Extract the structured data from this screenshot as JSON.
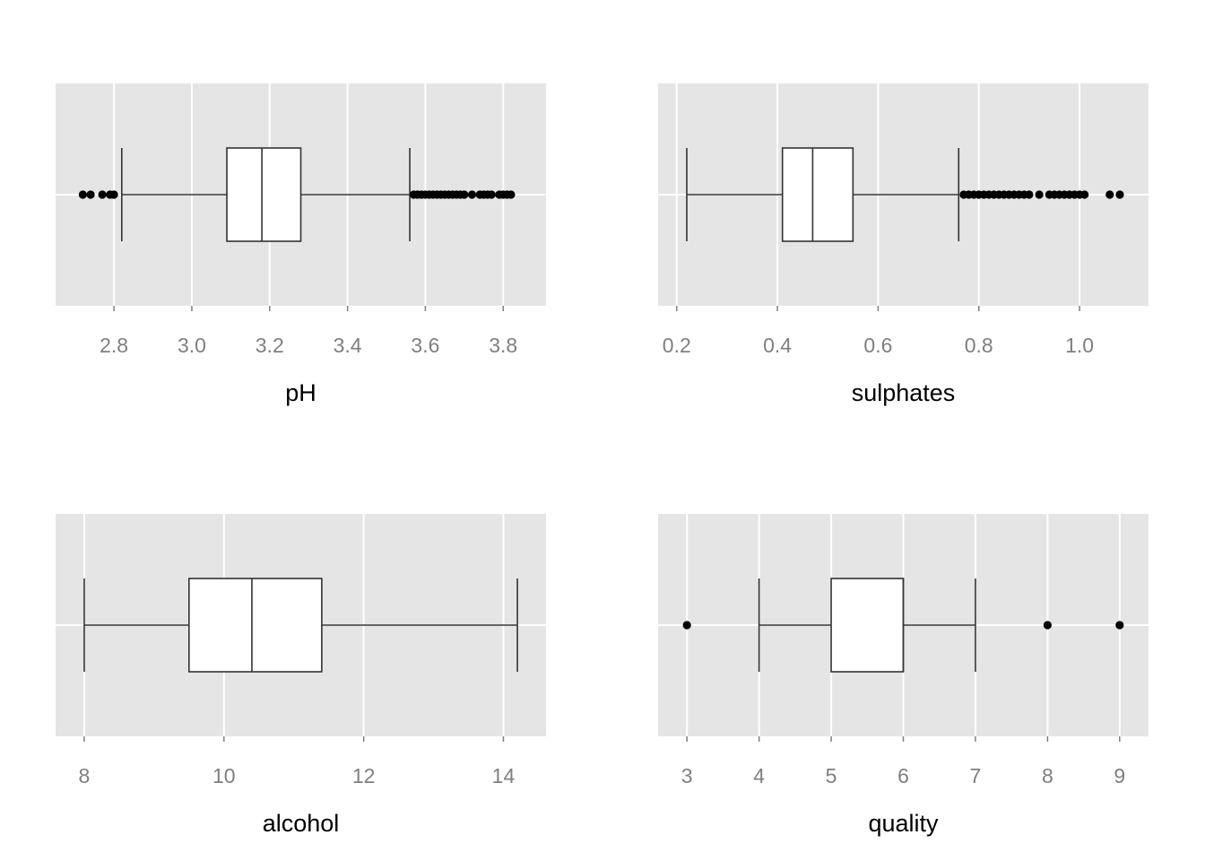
{
  "chart_data": [
    {
      "type": "boxplot",
      "xlabel": "pH",
      "xlim": [
        2.65,
        3.91
      ],
      "ticks": [
        2.8,
        3.0,
        3.2,
        3.4,
        3.6,
        3.8
      ],
      "tick_labels": [
        "2.8",
        "3.0",
        "3.2",
        "3.4",
        "3.6",
        "3.8"
      ],
      "grid": true,
      "box": {
        "whisker_low": 2.82,
        "q1": 3.09,
        "median": 3.18,
        "q3": 3.28,
        "whisker_high": 3.56
      },
      "outliers": [
        2.72,
        2.74,
        2.77,
        2.79,
        2.8,
        3.57,
        3.58,
        3.59,
        3.6,
        3.61,
        3.62,
        3.63,
        3.64,
        3.65,
        3.66,
        3.67,
        3.68,
        3.69,
        3.7,
        3.72,
        3.74,
        3.75,
        3.76,
        3.77,
        3.79,
        3.8,
        3.81,
        3.82
      ]
    },
    {
      "type": "boxplot",
      "xlabel": "sulphates",
      "xlim": [
        0.163,
        1.137
      ],
      "ticks": [
        0.2,
        0.4,
        0.6,
        0.8,
        1.0
      ],
      "tick_labels": [
        "0.2",
        "0.4",
        "0.6",
        "0.8",
        "1.0"
      ],
      "grid": true,
      "box": {
        "whisker_low": 0.22,
        "q1": 0.41,
        "median": 0.47,
        "q3": 0.55,
        "whisker_high": 0.76
      },
      "outliers": [
        0.77,
        0.78,
        0.79,
        0.8,
        0.81,
        0.82,
        0.83,
        0.84,
        0.85,
        0.86,
        0.87,
        0.88,
        0.89,
        0.9,
        0.92,
        0.94,
        0.95,
        0.96,
        0.97,
        0.98,
        0.99,
        1.0,
        1.01,
        1.06,
        1.08
      ]
    },
    {
      "type": "boxplot",
      "xlabel": "alcohol",
      "xlim": [
        7.59,
        14.61
      ],
      "ticks": [
        8,
        10,
        12,
        14
      ],
      "tick_labels": [
        "8",
        "10",
        "12",
        "14"
      ],
      "grid": true,
      "box": {
        "whisker_low": 8.0,
        "q1": 9.5,
        "median": 10.4,
        "q3": 11.4,
        "whisker_high": 14.2
      },
      "outliers": []
    },
    {
      "type": "boxplot",
      "xlabel": "quality",
      "xlim": [
        2.6,
        9.4
      ],
      "ticks": [
        3,
        4,
        5,
        6,
        7,
        8,
        9
      ],
      "tick_labels": [
        "3",
        "4",
        "5",
        "6",
        "7",
        "8",
        "9"
      ],
      "grid": true,
      "box": {
        "whisker_low": 4,
        "q1": 5,
        "median": 6,
        "q3": 6,
        "whisker_high": 7
      },
      "outliers": [
        3,
        8,
        9
      ]
    }
  ],
  "colors": {
    "panel_background": "#e5e5e5",
    "grid_line": "#ffffff",
    "box_fill": "#ffffff",
    "box_stroke": "#333333",
    "outlier": "#000000",
    "tick_label": "#7f7f7f",
    "axis_title": "#000000"
  }
}
